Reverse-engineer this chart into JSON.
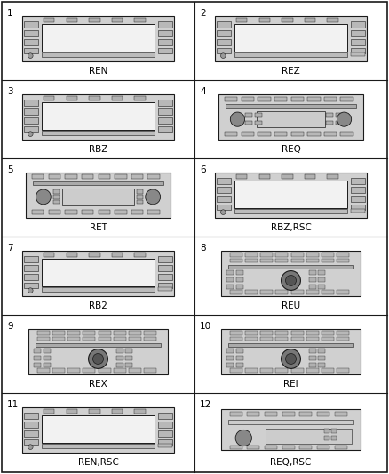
{
  "cells": [
    {
      "num": "1",
      "label": "REN",
      "type": "nav_A"
    },
    {
      "num": "2",
      "label": "REZ",
      "type": "nav_B"
    },
    {
      "num": "3",
      "label": "RBZ",
      "type": "nav_C"
    },
    {
      "num": "4",
      "label": "REQ",
      "type": "cd_A"
    },
    {
      "num": "5",
      "label": "RET",
      "type": "cd_B"
    },
    {
      "num": "6",
      "label": "RBZ,RSC",
      "type": "nav_D"
    },
    {
      "num": "7",
      "label": "RB2",
      "type": "nav_E"
    },
    {
      "num": "8",
      "label": "REU",
      "type": "cd_C"
    },
    {
      "num": "9",
      "label": "REX",
      "type": "cd_D"
    },
    {
      "num": "10",
      "label": "REI",
      "type": "cd_E"
    },
    {
      "num": "11",
      "label": "REN,RSC",
      "type": "nav_F"
    },
    {
      "num": "12",
      "label": "REQ,RSC",
      "type": "cd_F"
    }
  ],
  "bg": "#ffffff",
  "lc": "#1a1a1a",
  "fc_body": "#e0e0e0",
  "fc_screen": "#f8f8f8",
  "fc_btn": "#c0c0c0",
  "fc_dark": "#888888"
}
